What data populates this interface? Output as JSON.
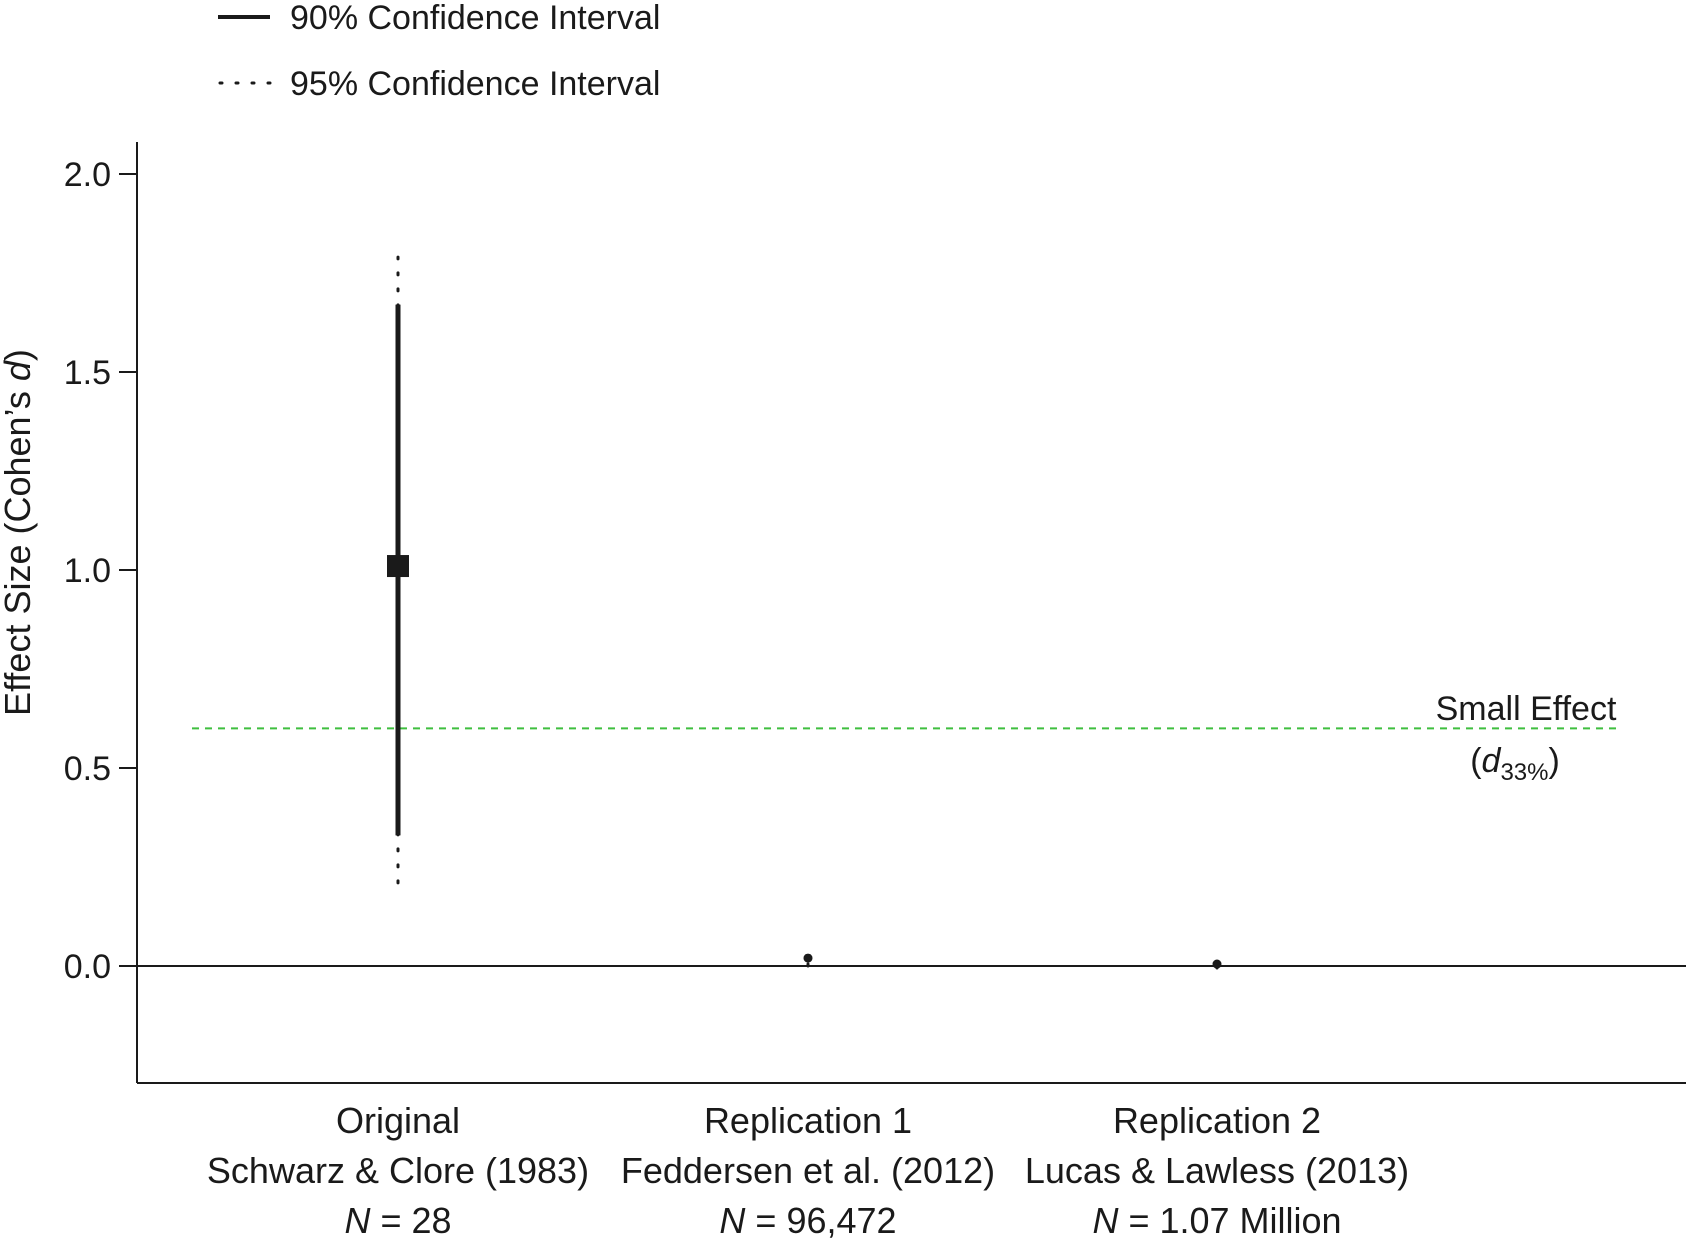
{
  "chart_data": {
    "type": "scatter",
    "subtype": "point-estimate-with-confidence-intervals",
    "ylabel_parts": [
      "Effect Size (Cohen’s ",
      "d",
      ")"
    ],
    "yticks": [
      "2.0",
      "1.5",
      "1.0",
      "0.5",
      "0.0"
    ],
    "ylim": [
      -0.29,
      2.08
    ],
    "legend": {
      "position": "top-left",
      "entries": [
        {
          "label": "90% Confidence Interval",
          "style": "solid"
        },
        {
          "label": "95% Confidence Interval",
          "style": "dotted"
        }
      ]
    },
    "studies": [
      {
        "name": "Original",
        "source": "Schwarz & Clore (1983)",
        "n_prefix": "N",
        "n_value": " = 28",
        "estimate": 1.01,
        "ci90": [
          0.33,
          1.67
        ],
        "ci95": [
          0.21,
          1.79
        ],
        "marker": "square"
      },
      {
        "name": "Replication 1",
        "source": "Feddersen et al. (2012)",
        "n_prefix": "N",
        "n_value": " = 96,472",
        "estimate": 0.02,
        "ci90": [
          0.01,
          0.03
        ],
        "ci95": [
          0.0,
          0.04
        ],
        "marker": "dot"
      },
      {
        "name": "Replication 2",
        "source": "Lucas & Lawless (2013)",
        "n_prefix": "N",
        "n_value": " = 1.07 Million",
        "estimate": 0.005,
        "ci90": [
          0.0,
          0.01
        ],
        "ci95": [
          -0.005,
          0.015
        ],
        "marker": "dot"
      }
    ],
    "reference_line": {
      "value": 0.6,
      "label": "Small Effect",
      "sublabel_open": "(",
      "sublabel_symbol": "d",
      "sublabel_subscript": "33%",
      "sublabel_close": ")",
      "color": "#3fbf3f",
      "style": "dashed"
    },
    "zero_line": 0.0
  }
}
